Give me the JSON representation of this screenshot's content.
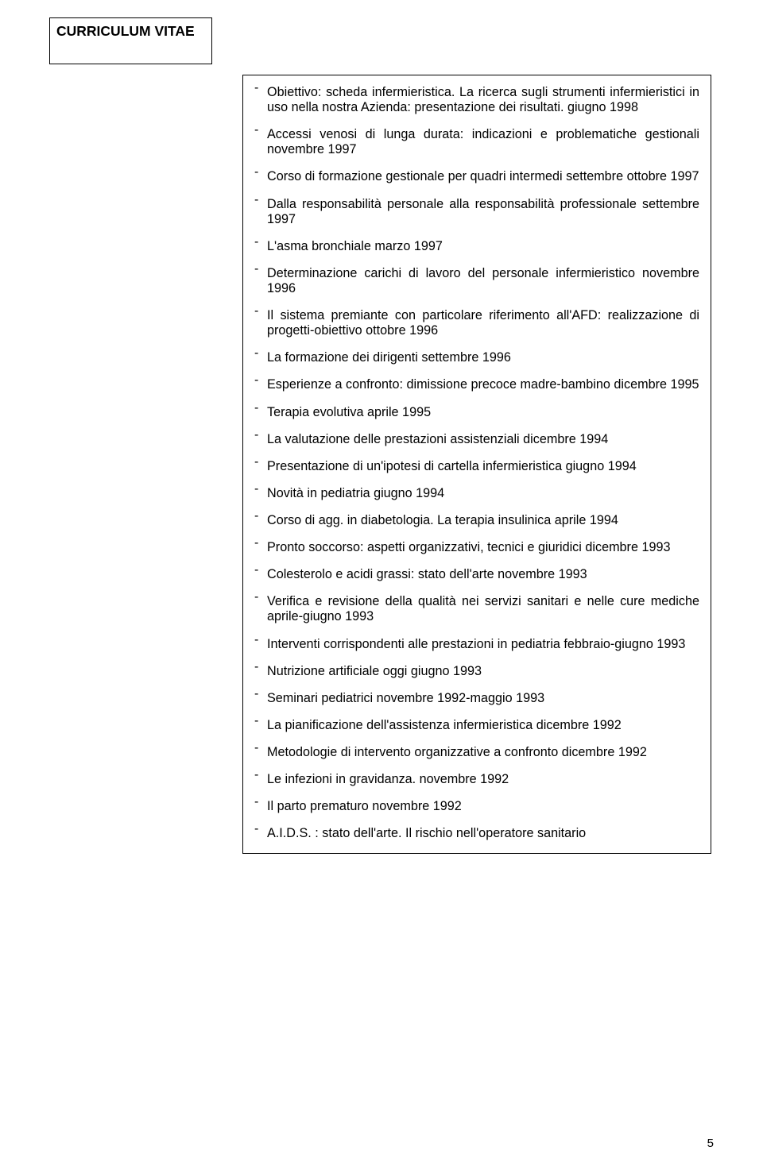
{
  "header": {
    "title": "CURRICULUM VITAE"
  },
  "items": [
    "Obiettivo: scheda infermieristica. La ricerca sugli strumenti infermieristici in uso nella nostra Azienda: presentazione dei risultati. giugno 1998",
    "Accessi venosi di lunga durata: indicazioni e problematiche gestionali novembre 1997",
    "Corso di formazione gestionale per quadri intermedi settembre ottobre 1997",
    "Dalla responsabilità personale alla responsabilità professionale settembre 1997",
    "L'asma bronchiale marzo 1997",
    "Determinazione carichi di lavoro del personale infermieristico novembre 1996",
    "Il sistema premiante con particolare riferimento all'AFD: realizzazione di progetti-obiettivo ottobre 1996",
    "La formazione dei dirigenti settembre 1996",
    "Esperienze a confronto: dimissione precoce madre-bambino dicembre 1995",
    "Terapia evolutiva aprile 1995",
    "La valutazione delle prestazioni assistenziali dicembre 1994",
    "Presentazione di un'ipotesi di cartella infermieristica giugno 1994",
    "Novità in pediatria giugno 1994",
    "Corso di agg. in diabetologia. La terapia insulinica aprile 1994",
    "Pronto soccorso: aspetti organizzativi, tecnici e giuridici dicembre 1993",
    "Colesterolo e acidi grassi: stato dell'arte novembre 1993",
    "Verifica e revisione della qualità nei servizi sanitari e nelle cure mediche aprile-giugno 1993",
    "Interventi corrispondenti alle prestazioni in pediatria febbraio-giugno 1993",
    "Nutrizione artificiale oggi giugno 1993",
    "Seminari pediatrici novembre 1992-maggio 1993",
    "La pianificazione dell'assistenza infermieristica dicembre 1992",
    "Metodologie di intervento organizzative a confronto dicembre 1992",
    "Le infezioni in gravidanza. novembre 1992",
    "Il parto prematuro novembre 1992",
    "A.I.D.S. : stato dell'arte. Il rischio nell'operatore sanitario"
  ],
  "footer": {
    "page_number": "5"
  }
}
